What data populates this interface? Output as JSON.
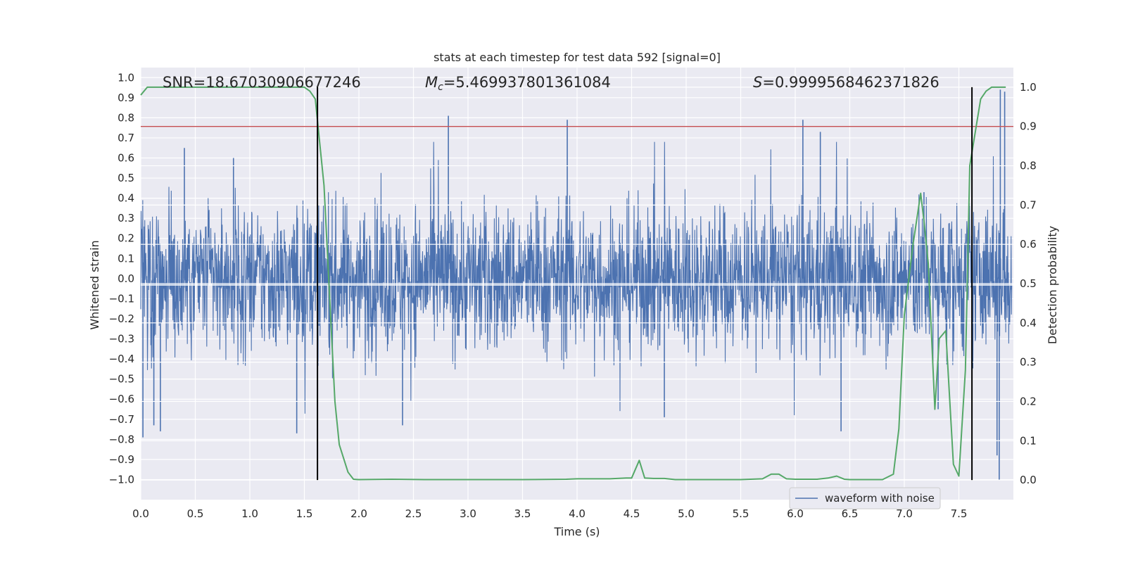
{
  "chart_data": {
    "type": "line",
    "title": "stats at each timestep for test data 592 [signal=0]",
    "xlabel": "Time (s)",
    "ylabel_left": "Whitened strain",
    "ylabel_right": "Detection probability",
    "xlim": [
      0.0,
      8.0
    ],
    "ylim_left": [
      -1.1,
      1.05
    ],
    "ylim_right": [
      -0.05,
      1.05
    ],
    "xticks": [
      0.0,
      0.5,
      1.0,
      1.5,
      2.0,
      2.5,
      3.0,
      3.5,
      4.0,
      4.5,
      5.0,
      5.5,
      6.0,
      6.5,
      7.0,
      7.5
    ],
    "xtick_labels": [
      "0.0",
      "0.5",
      "1.0",
      "1.5",
      "2.0",
      "2.5",
      "3.0",
      "3.5",
      "4.0",
      "4.5",
      "5.0",
      "5.5",
      "6.0",
      "6.5",
      "7.0",
      "7.5"
    ],
    "yticks_left": [
      1.0,
      0.9,
      0.8,
      0.7,
      0.6,
      0.5,
      0.4,
      0.3,
      0.2,
      0.1,
      0.0,
      -0.1,
      -0.2,
      -0.3,
      -0.4,
      -0.5,
      -0.6,
      -0.7,
      -0.8,
      -0.9,
      -1.0
    ],
    "ytick_labels_left": [
      "1.0",
      "0.9",
      "0.8",
      "0.7",
      "0.6",
      "0.5",
      "0.4",
      "0.3",
      "0.2",
      "0.1",
      "0.0",
      "−0.1",
      "−0.2",
      "−0.3",
      "−0.4",
      "−0.5",
      "−0.6",
      "−0.7",
      "−0.8",
      "−0.9",
      "−1.0"
    ],
    "yticks_right": [
      1.0,
      0.9,
      0.8,
      0.7,
      0.6,
      0.5,
      0.4,
      0.3,
      0.2,
      0.1,
      0.0
    ],
    "ytick_labels_right": [
      "1.0",
      "0.9",
      "0.8",
      "0.7",
      "0.6",
      "0.5",
      "0.4",
      "0.3",
      "0.2",
      "0.1",
      "0.0"
    ],
    "grid": true,
    "annotations": {
      "snr": "SNR=18.67030906677246",
      "mc_symbol": "M",
      "mc_subscript": "c",
      "mc_value": "=5.469937801361084",
      "s_symbol": "S",
      "s_value": "=0.9999568462371826"
    },
    "threshold_line": {
      "y_right": 0.9,
      "color": "#c44e52"
    },
    "vertical_lines": [
      1.62,
      7.62
    ],
    "legend": {
      "label": "waveform with noise",
      "location": "lower-right"
    },
    "series": [
      {
        "name": "waveform with noise",
        "axis": "left",
        "color": "#4c72b0",
        "description": "dense noisy whitened strain signal, envelope roughly -0.45 to 0.45 with spikes",
        "spikes": [
          {
            "x": 0.02,
            "y": -0.79
          },
          {
            "x": 0.12,
            "y": -0.73
          },
          {
            "x": 0.18,
            "y": -0.76
          },
          {
            "x": 0.4,
            "y": 0.65
          },
          {
            "x": 0.85,
            "y": 0.6
          },
          {
            "x": 1.43,
            "y": -0.77
          },
          {
            "x": 2.82,
            "y": 0.81
          },
          {
            "x": 2.4,
            "y": -0.73
          },
          {
            "x": 3.91,
            "y": 0.79
          },
          {
            "x": 4.8,
            "y": -0.69
          },
          {
            "x": 6.07,
            "y": 0.79
          },
          {
            "x": 6.23,
            "y": 0.73
          },
          {
            "x": 6.42,
            "y": -0.76
          },
          {
            "x": 7.18,
            "y": 0.43
          },
          {
            "x": 7.31,
            "y": -0.65
          },
          {
            "x": 7.88,
            "y": 0.94
          },
          {
            "x": 7.87,
            "y": -1.0
          },
          {
            "x": 7.92,
            "y": 0.93
          },
          {
            "x": 7.85,
            "y": -0.88
          }
        ]
      },
      {
        "name": "detection probability",
        "axis": "right",
        "color": "#55a868",
        "x": [
          0.0,
          0.06,
          0.2,
          0.5,
          1.0,
          1.4,
          1.5,
          1.55,
          1.6,
          1.68,
          1.78,
          1.82,
          1.9,
          1.95,
          2.0,
          2.3,
          2.6,
          3.0,
          3.5,
          3.9,
          4.0,
          4.3,
          4.45,
          4.5,
          4.57,
          4.62,
          4.7,
          4.8,
          4.9,
          5.0,
          5.5,
          5.7,
          5.78,
          5.85,
          5.92,
          6.0,
          6.2,
          6.3,
          6.38,
          6.45,
          6.5,
          6.8,
          6.9,
          6.95,
          7.0,
          7.08,
          7.15,
          7.18,
          7.22,
          7.28,
          7.32,
          7.38,
          7.45,
          7.5,
          7.56,
          7.6,
          7.7,
          7.75,
          7.8,
          7.85,
          7.9,
          7.93
        ],
        "y": [
          0.98,
          1.0,
          1.0,
          1.0,
          1.0,
          1.0,
          1.0,
          0.99,
          0.97,
          0.75,
          0.2,
          0.09,
          0.02,
          0.002,
          0.001,
          0.002,
          0.001,
          0.001,
          0.001,
          0.002,
          0.003,
          0.003,
          0.005,
          0.005,
          0.05,
          0.005,
          0.004,
          0.004,
          0.001,
          0.001,
          0.001,
          0.003,
          0.015,
          0.015,
          0.003,
          0.002,
          0.002,
          0.005,
          0.01,
          0.002,
          0.001,
          0.001,
          0.015,
          0.13,
          0.42,
          0.6,
          0.73,
          0.66,
          0.55,
          0.18,
          0.36,
          0.38,
          0.04,
          0.01,
          0.28,
          0.8,
          0.97,
          0.99,
          1.0,
          1.0,
          1.0,
          1.0
        ]
      }
    ]
  }
}
